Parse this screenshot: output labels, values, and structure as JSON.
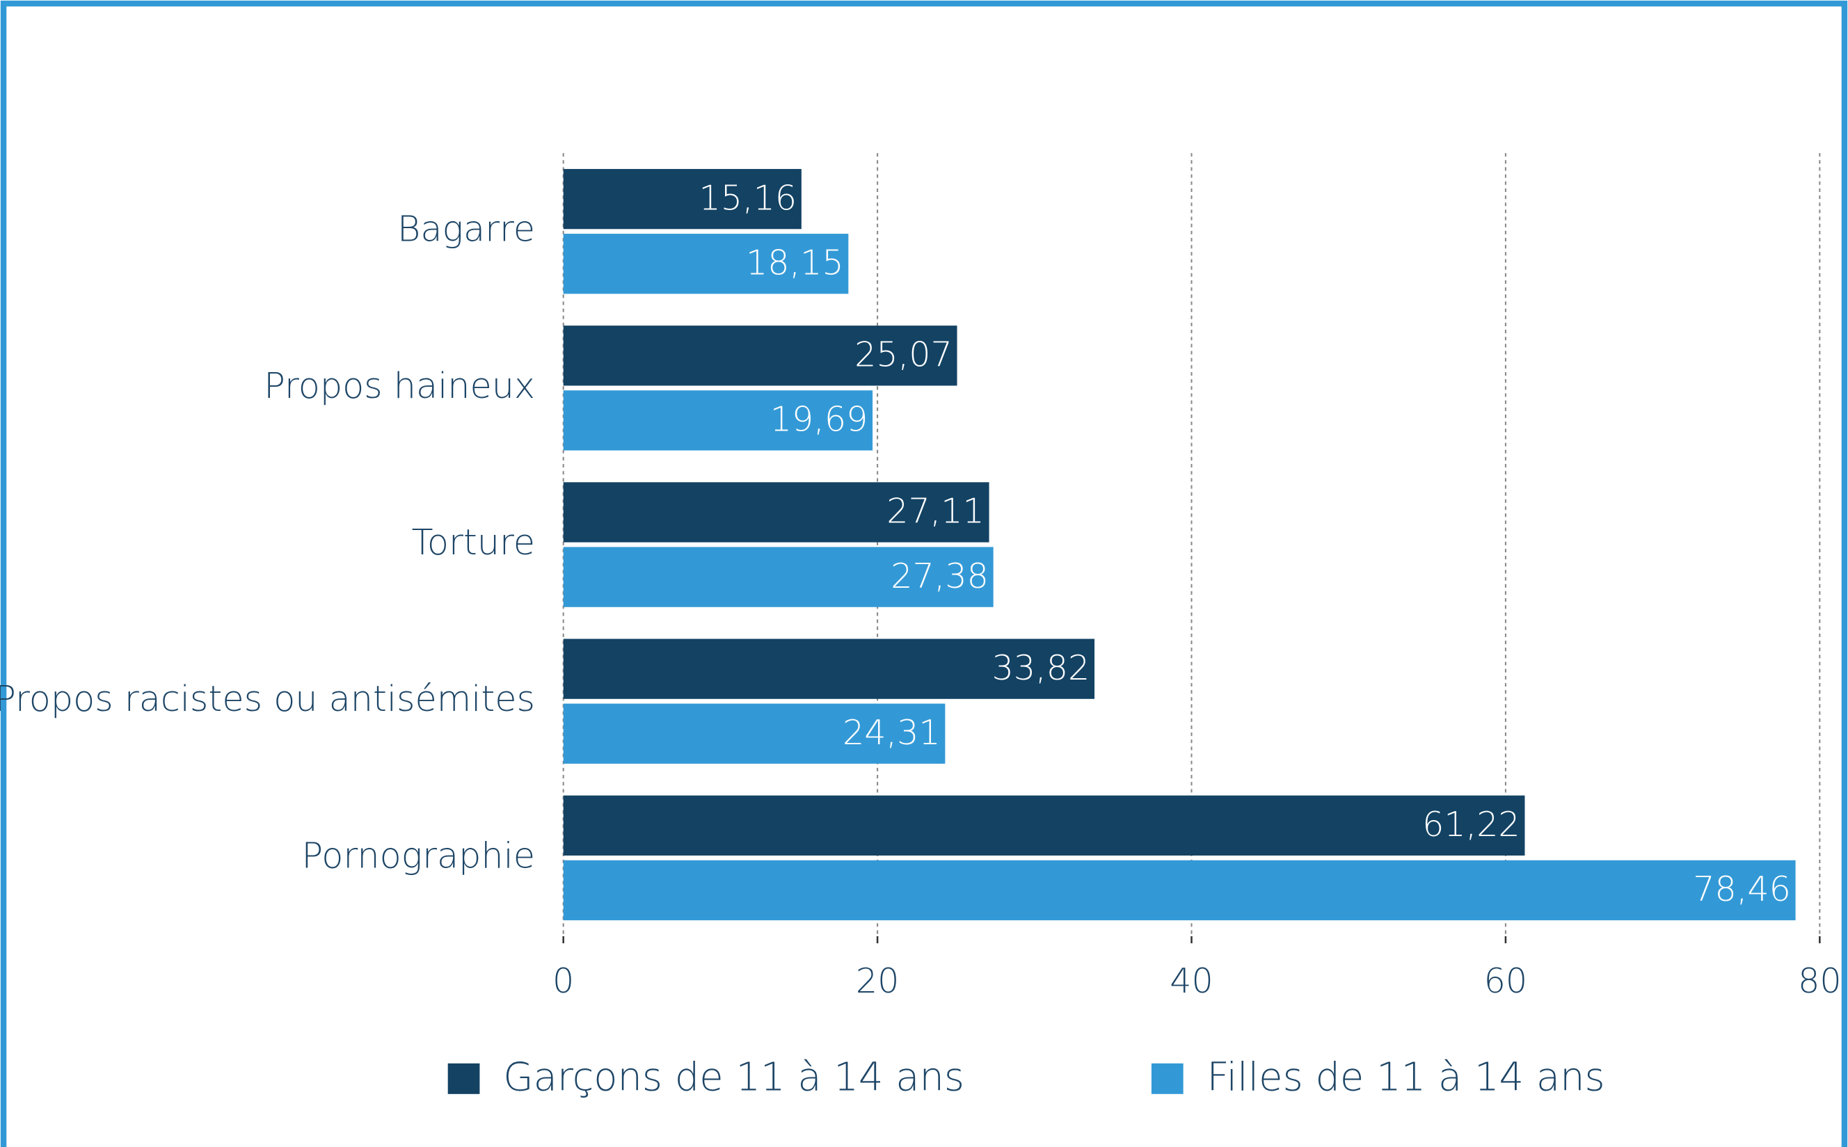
{
  "chart_data": {
    "type": "bar",
    "orientation": "horizontal",
    "categories": [
      "Bagarre",
      "Propos haineux",
      "Torture",
      "Propos racistes ou antisémites",
      "Pornographie"
    ],
    "series": [
      {
        "name": "Garçons de 11 à 14 ans",
        "color": "#134263",
        "values": [
          15.16,
          25.07,
          27.11,
          33.82,
          61.22
        ],
        "value_labels": [
          "15,16",
          "25,07",
          "27,11",
          "33,82",
          "61,22"
        ]
      },
      {
        "name": "Filles de 11 à 14 ans",
        "color": "#3399d6",
        "values": [
          18.15,
          19.69,
          27.38,
          24.31,
          78.46
        ],
        "value_labels": [
          "18,15",
          "19,69",
          "27,38",
          "24,31",
          "78,46"
        ]
      }
    ],
    "xlim": [
      0,
      80
    ],
    "xticks": [
      0,
      20,
      40,
      60,
      80
    ],
    "grid": true,
    "legend": "bottom"
  }
}
